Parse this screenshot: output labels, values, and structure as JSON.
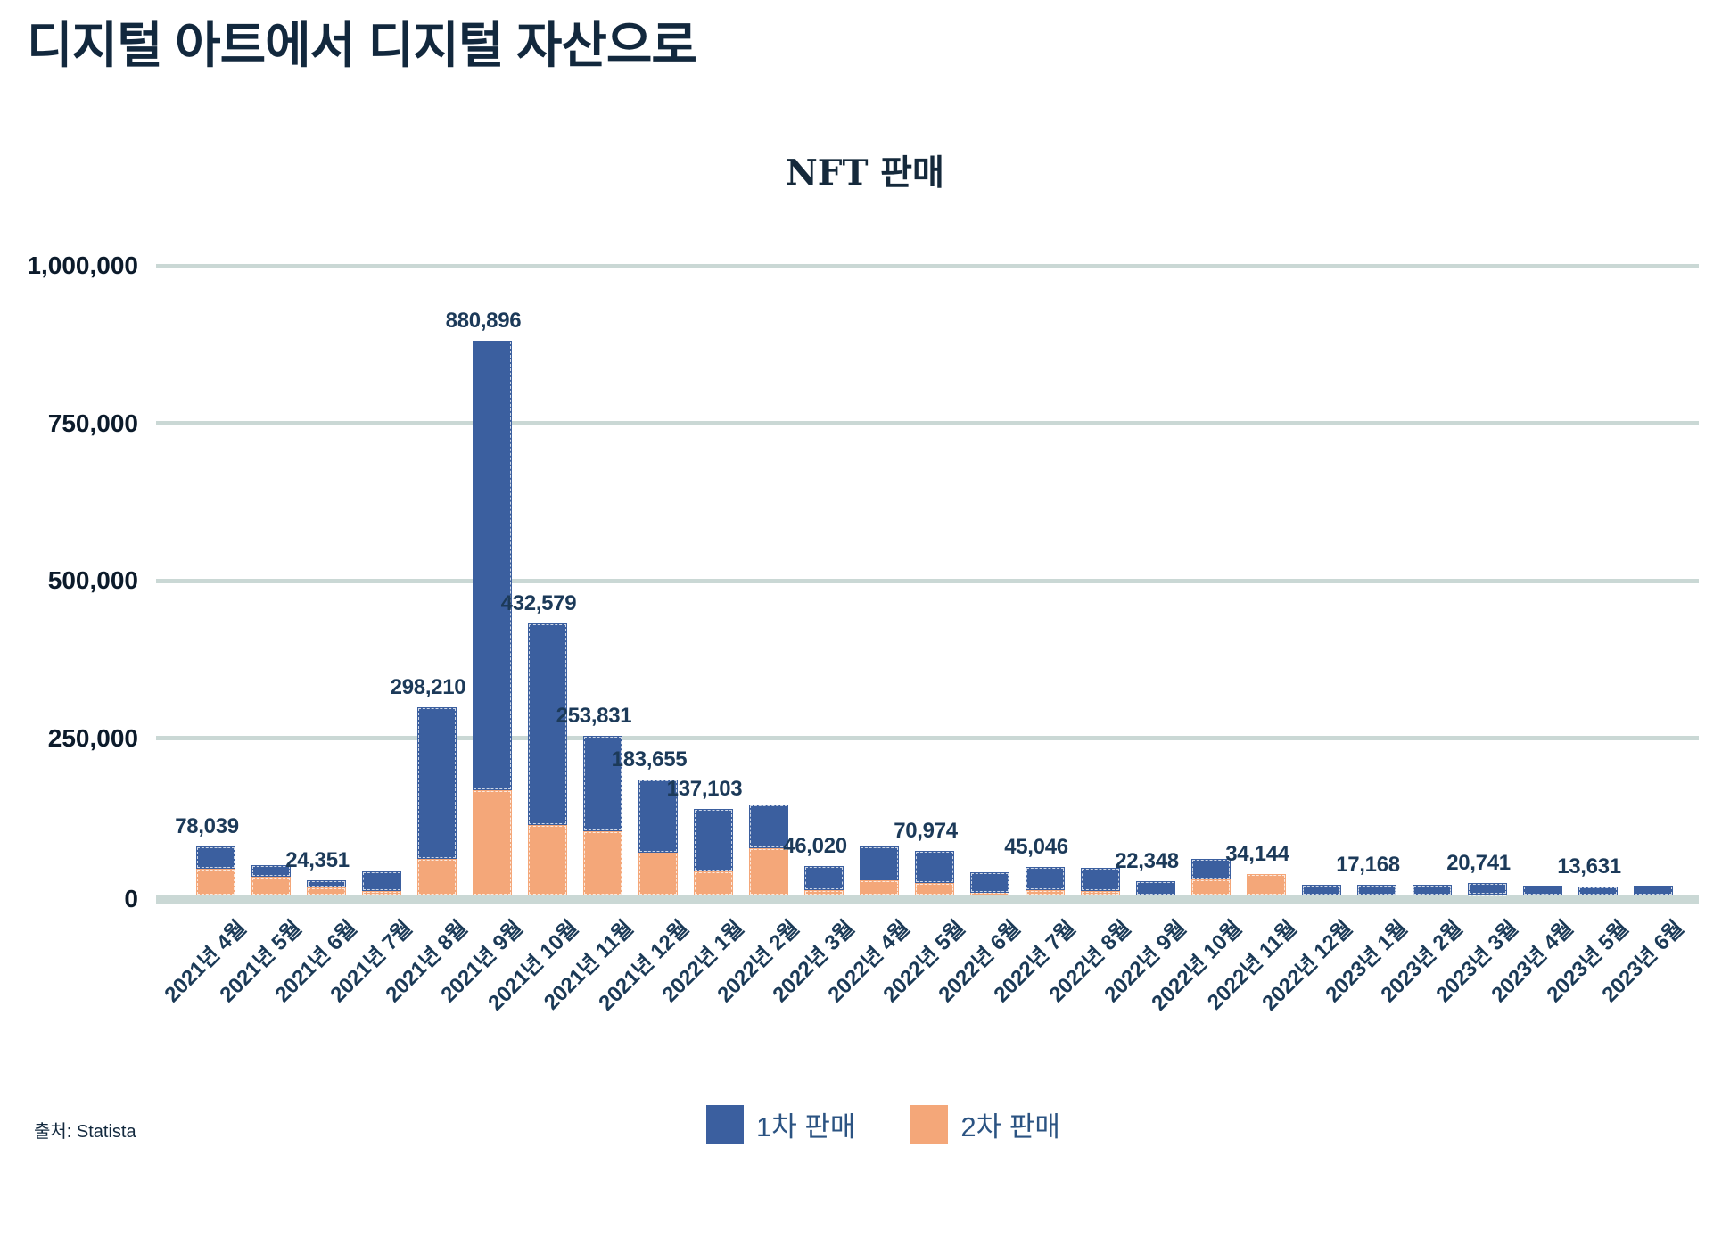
{
  "page": {
    "title": "디지털 아트에서 디지털 자산으로",
    "source": "출처: Statista"
  },
  "chart_data": {
    "type": "bar",
    "stacked": true,
    "title": "NFT 판매",
    "grid": true,
    "legend_position": "bottom",
    "ylim": [
      0,
      1000000
    ],
    "yticks": [
      "0",
      "250,000",
      "500,000",
      "750,000",
      "1,000,000"
    ],
    "categories": [
      "2021년 4월",
      "2021년 5월",
      "2021년 6월",
      "2021년 7월",
      "2021년 8월",
      "2021년 9월",
      "2021년 10월",
      "2021년 11월",
      "2021년 12월",
      "2022년 1월",
      "2022년 2월",
      "2022년 3월",
      "2022년 4월",
      "2022년 5월",
      "2022년 6월",
      "2022년 7월",
      "2022년 8월",
      "2022년 9월",
      "2022년 10월",
      "2022년 11월",
      "2022년 12월",
      "2023년 1월",
      "2023년 2월",
      "2023년 3월",
      "2023년 4월",
      "2023년 5월",
      "2023년 6월"
    ],
    "series": [
      {
        "name": "1차 판매",
        "color": "#3b5f9f",
        "values": [
          36039,
          18000,
          11351,
          31000,
          240210,
          713896,
          320579,
          151831,
          115655,
          99103,
          70000,
          38020,
          54000,
          50974,
          33000,
          37046,
          37000,
          22348,
          33000,
          0,
          17000,
          17168,
          17000,
          18741,
          15000,
          13631,
          16000
        ]
      },
      {
        "name": "2차 판매",
        "color": "#f4a779",
        "values": [
          42000,
          30000,
          13000,
          7000,
          58000,
          167000,
          112000,
          102000,
          68000,
          38000,
          75000,
          8000,
          24000,
          20000,
          4000,
          8000,
          7000,
          0,
          25000,
          34144,
          0,
          0,
          0,
          2000,
          0,
          0,
          0
        ]
      }
    ],
    "total_labels": [
      "78,039",
      null,
      "24,351",
      null,
      "298,210",
      "880,896",
      "432,579",
      "253,831",
      "183,655",
      "137,103",
      null,
      "46,020",
      null,
      "70,974",
      null,
      "45,046",
      null,
      "22,348",
      null,
      "34,144",
      null,
      "17,168",
      null,
      "20,741",
      null,
      "13,631",
      null
    ]
  },
  "colors": {
    "primary_bar": "#3b5f9f",
    "secondary_bar": "#f4a779",
    "gridline": "#cad8d5",
    "text_dark": "#12283d",
    "legend_text": "#2b5382"
  }
}
